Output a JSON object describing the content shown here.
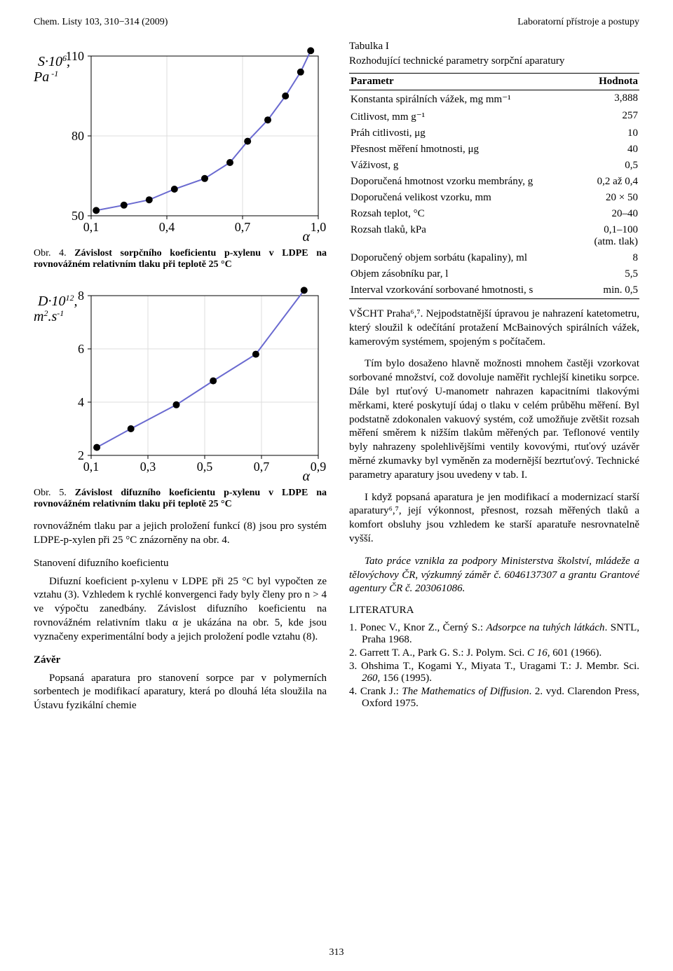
{
  "header": {
    "left": "Chem. Listy 103, 310−314 (2009)",
    "right": "Laboratorní přístroje a postupy"
  },
  "page_number": "313",
  "chart1": {
    "type": "line-scatter",
    "x": [
      0.12,
      0.23,
      0.33,
      0.43,
      0.55,
      0.65,
      0.72,
      0.8,
      0.87,
      0.93,
      0.97
    ],
    "y": [
      52,
      54,
      56,
      60,
      64,
      70,
      78,
      86,
      95,
      104,
      112
    ],
    "xlim": [
      0.1,
      1.0
    ],
    "ylim": [
      50,
      110
    ],
    "xticks": [
      0.1,
      0.4,
      0.7,
      1.0
    ],
    "yticks": [
      50,
      80,
      110
    ],
    "xtick_labels": [
      "0,1",
      "0,4",
      "0,7",
      "1,0"
    ],
    "ytick_labels": [
      "50",
      "80",
      "110"
    ],
    "xlabel": "α",
    "ylabel_html": "S·10<tspan baseline-shift='super' font-size='12'>6</tspan>,<tspan x='0' dy='22'>Pa</tspan><tspan baseline-shift='super' font-size='12'> -1</tspan>",
    "line_color": "#6a6ad0",
    "marker_color": "#000000",
    "marker_size": 5,
    "grid_color": "#dddddd",
    "caption_label": "Obr. 4. ",
    "caption_bold": "Závislost sorpčního koeficientu p-xylenu v LDPE na rovnovážném relativním tlaku při teplotě 25 °C",
    "caption_rest": ""
  },
  "chart2": {
    "type": "line-scatter",
    "x": [
      0.12,
      0.24,
      0.4,
      0.53,
      0.68,
      0.85
    ],
    "y": [
      2.3,
      3.0,
      3.9,
      4.8,
      5.8,
      8.2
    ],
    "xlim": [
      0.1,
      0.9
    ],
    "ylim": [
      2,
      8
    ],
    "xticks": [
      0.1,
      0.3,
      0.5,
      0.7,
      0.9
    ],
    "yticks": [
      2,
      4,
      6,
      8
    ],
    "xtick_labels": [
      "0,1",
      "0,3",
      "0,5",
      "0,7",
      "0,9"
    ],
    "ytick_labels": [
      "2",
      "4",
      "6",
      "8"
    ],
    "xlabel": "α",
    "ylabel_html": "D·10<tspan baseline-shift='super' font-size='12'>12</tspan>,<tspan x='0' dy='22'>m</tspan><tspan baseline-shift='super' font-size='12'>2</tspan>.s<tspan baseline-shift='super' font-size='12'>-1</tspan>",
    "line_color": "#6a6ad0",
    "marker_color": "#000000",
    "marker_size": 5,
    "grid_color": "#dddddd",
    "caption_label": "Obr. 5. ",
    "caption_bold": "Závislost difuzního koeficientu p-xylenu v LDPE na rovnovážném relativním tlaku při teplotě 25 °C",
    "caption_rest": ""
  },
  "left_paras": {
    "p1": "rovnovážném tlaku par a jejich proložení funkcí (8) jsou pro systém LDPE-p-xylen při 25 °C znázorněny na obr. 4.",
    "h_diffusion": "Stanovení difuzního koeficientu",
    "p2": "Difuzní koeficient p-xylenu v LDPE při 25 °C byl vypočten ze vztahu (3). Vzhledem k rychlé konvergenci řady byly členy pro n > 4 ve výpočtu zanedbány. Závislost difuzního koeficientu na rovnovážném relativním tlaku α je ukázána na obr. 5, kde jsou vyznačeny experimentální body a jejich proložení podle vztahu (8).",
    "h_conclusion": "Závěr",
    "p3": "Popsaná aparatura pro stanovení sorpce par v polymerních sorbentech je modifikací aparatury, která po dlouhá léta sloužila na Ústavu fyzikální chemie"
  },
  "table": {
    "caption_line1": "Tabulka I",
    "caption_line2": "Rozhodující technické parametry sorpční aparatury",
    "columns": [
      "Parametr",
      "Hodnota"
    ],
    "rows": [
      [
        "Konstanta spirálních vážek, mg mm⁻¹",
        "3,888"
      ],
      [
        "Citlivost, mm g⁻¹",
        "257"
      ],
      [
        "Práh citlivosti, μg",
        "10"
      ],
      [
        "Přesnost měření hmotnosti, μg",
        "40"
      ],
      [
        "Váživost, g",
        "0,5"
      ],
      [
        "Doporučená hmotnost vzorku membrány, g",
        "0,2 až 0,4"
      ],
      [
        "Doporučená velikost vzorku, mm",
        "20 × 50"
      ],
      [
        "Rozsah teplot, °C",
        "20–40"
      ],
      [
        "Rozsah tlaků, kPa",
        "0,1–100\n(atm. tlak)"
      ],
      [
        "Doporučený objem sorbátu (kapaliny), ml",
        "8"
      ],
      [
        "Objem zásobníku par, l",
        "5,5"
      ],
      [
        "Interval vzorkování sorbované hmotnosti, s",
        "min. 0,5"
      ]
    ]
  },
  "right_paras": {
    "p1": "VŠCHT Praha⁶,⁷. Nejpodstatnější úpravou je nahrazení katetometru, který sloužil k odečítání protažení McBainových spirálních vážek, kamerovým systémem, spojeným s počítačem.",
    "p2": "Tím bylo dosaženo hlavně možnosti mnohem častěji vzorkovat sorbované množství, což dovoluje naměřit rychlejší kinetiku sorpce. Dále byl rtuťový U-manometr nahrazen kapacitními tlakovými měrkami, které poskytují údaj o tlaku v celém průběhu měření. Byl podstatně zdokonalen vakuový systém, což umožňuje zvětšit rozsah měření směrem k nižším tlakům měřených par. Teflonové ventily byly nahrazeny spolehlivějšími ventily kovovými, rtuťový uzávěr měrné zkumavky byl vyměněn za modernější bezrtuťový. Technické parametry aparatury jsou uvedeny v tab. I.",
    "p3": "I když popsaná aparatura je jen modifikací a modernizací starší aparatury⁶,⁷, její výkonnost, přesnost, rozsah měřených tlaků a komfort obsluhy jsou vzhledem ke starší aparatuře nesrovnatelně vyšší.",
    "ack": "Tato práce vznikla za podpory Ministerstva školství, mládeže a tělovýchovy ČR, výzkumný záměr č. 6046137307 a grantu Grantové agentury ČR č. 203061086.",
    "lit_heading": "LITERATURA",
    "refs": [
      "1. Ponec V., Knor Z., Černý S.: <i>Adsorpce na tuhých látkách</i>. SNTL, Praha 1968.",
      "2. Garrett T. A., Park G. S.: J. Polym. Sci. <i>C 16</i>, 601 (1966).",
      "3. Ohshima T., Kogami Y., Miyata T., Uragami T.: J. Membr. Sci. <i>260</i>, 156 (1995).",
      "4. Crank J.: <i>The Mathematics of Diffusion</i>. 2. vyd. Clarendon Press, Oxford 1975."
    ]
  }
}
